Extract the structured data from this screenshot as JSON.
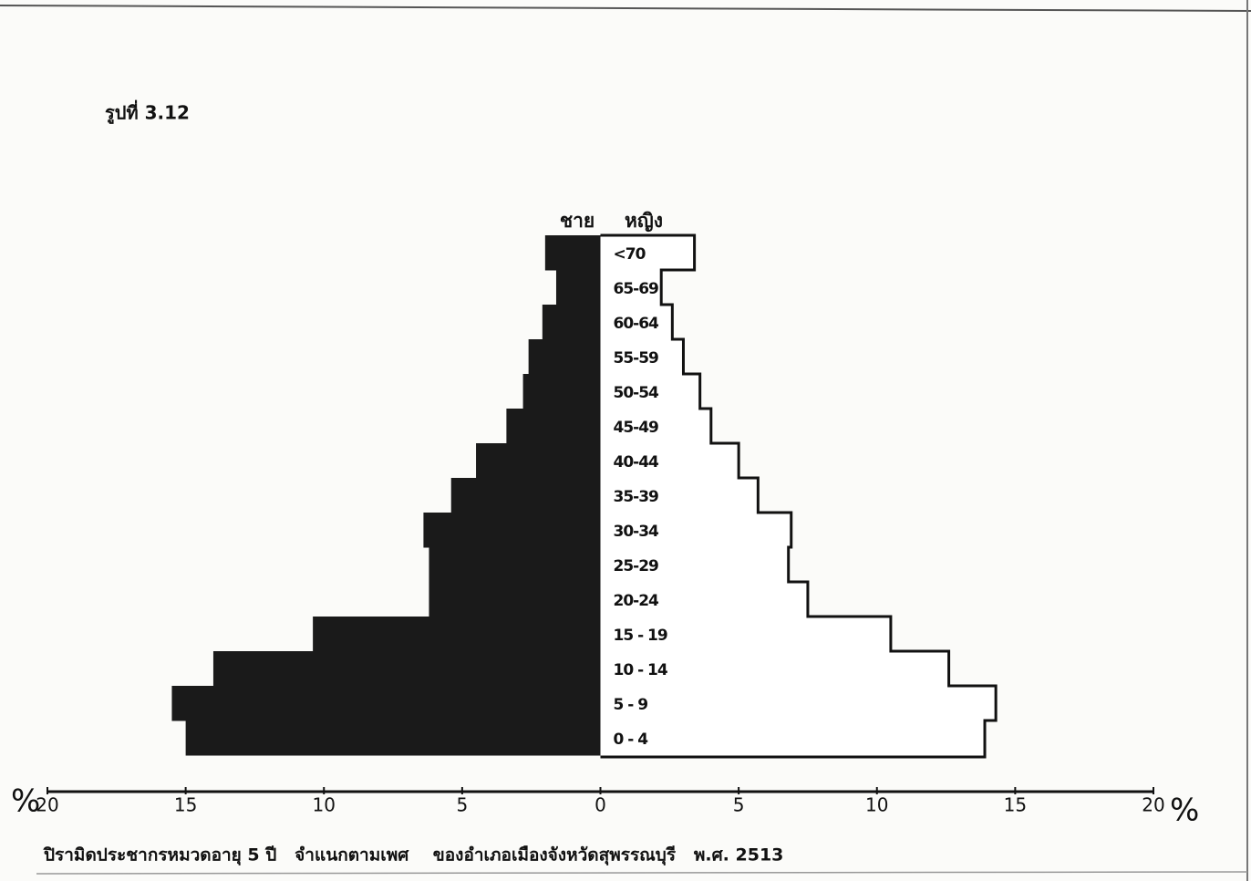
{
  "chart_data": {
    "type": "population-pyramid",
    "figure_label": "รูปที่ 3.12",
    "caption": "ปิรามิดประชากรหมวดอายุ 5 ปี   จำแนกตามเพศ    ของอำเภอเมืองจังหวัดสุพรรณบุรี   พ.ศ. 2513",
    "x_unit": "%",
    "categories": [
      "0 - 4",
      "5 - 9",
      "10 - 14",
      "15 - 19",
      "20-24",
      "25-29",
      "30-34",
      "35-39",
      "40-44",
      "45-49",
      "50-54",
      "55-59",
      "60-64",
      "65-69",
      "<70"
    ],
    "series": [
      {
        "name": "ชาย",
        "color": "#1a1a1a",
        "values": [
          15.0,
          15.5,
          14.0,
          10.4,
          6.2,
          6.2,
          6.4,
          5.4,
          4.5,
          3.4,
          2.8,
          2.6,
          2.1,
          1.6,
          2.0
        ]
      },
      {
        "name": "หญิง",
        "color": "#ffffff",
        "values": [
          13.9,
          14.3,
          12.6,
          10.5,
          7.5,
          6.8,
          6.9,
          5.7,
          5.0,
          4.0,
          3.6,
          3.0,
          2.6,
          2.2,
          3.4
        ]
      }
    ],
    "xlim": [
      -20,
      20
    ],
    "xticks": [
      {
        "value": -20,
        "label": "20"
      },
      {
        "value": -15,
        "label": "15"
      },
      {
        "value": -10,
        "label": "10"
      },
      {
        "value": -5,
        "label": "5"
      },
      0,
      5,
      10,
      15,
      20
    ]
  }
}
